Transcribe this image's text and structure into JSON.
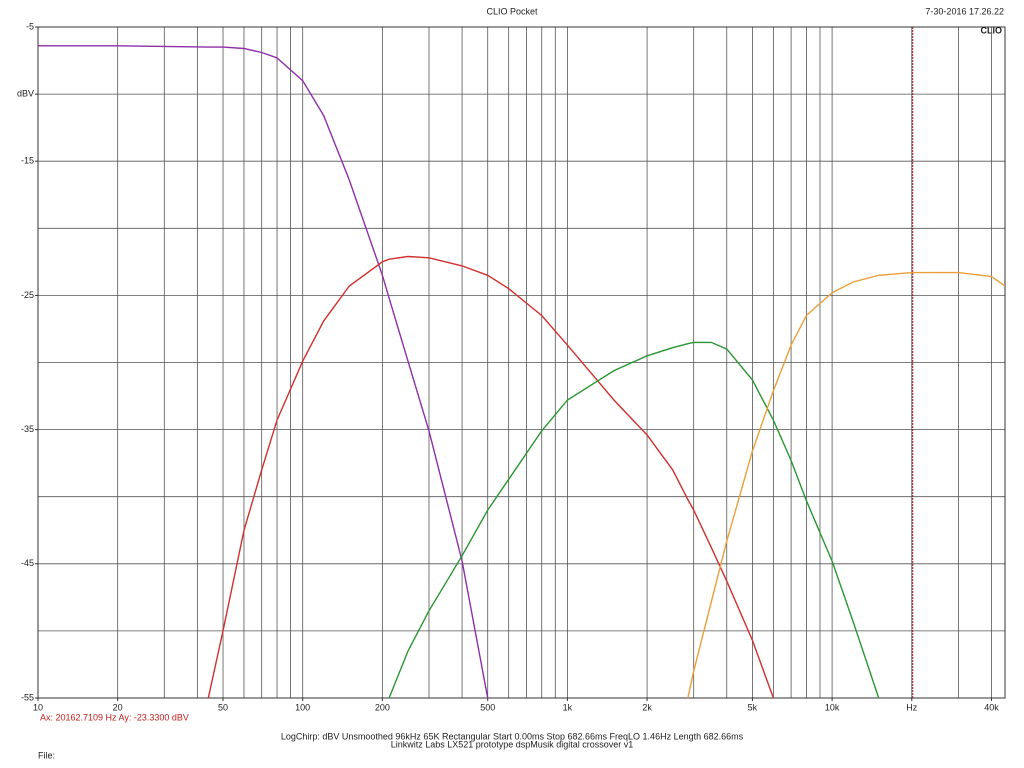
{
  "chart_data": {
    "type": "line",
    "title": "CLIO Pocket",
    "timestamp": "7-30-2016 17.26.22",
    "logo": "CLIO",
    "x_log": true,
    "x": [
      10,
      20,
      44,
      50,
      60,
      70,
      80,
      100,
      120,
      150,
      200,
      212,
      250,
      300,
      400,
      500,
      600,
      800,
      1000,
      1500,
      2000,
      2500,
      2850,
      3000,
      3500,
      4000,
      5000,
      6000,
      7000,
      8000,
      10000,
      12000,
      15000,
      20000,
      30000,
      40000,
      45000
    ],
    "series": [
      {
        "color": "#8e2fa8",
        "values": [
          -6.4,
          -6.4,
          -6.5,
          -6.5,
          -6.6,
          -6.9,
          -7.3,
          -9.0,
          -11.6,
          -16.4,
          -23.5,
          -25.2,
          -29.9,
          -35.1,
          -44.8,
          -55,
          null,
          null,
          null,
          null,
          null,
          null,
          null,
          null,
          null,
          null,
          null,
          null,
          null,
          null,
          null,
          null,
          null,
          null,
          null,
          null,
          null
        ]
      },
      {
        "color": "#d0302f",
        "values": [
          null,
          null,
          -55,
          -50,
          -42.5,
          -38,
          -34.3,
          -29.9,
          -26.9,
          -24.3,
          -22.5,
          -22.3,
          -22.1,
          -22.2,
          -22.8,
          -23.5,
          -24.5,
          -26.5,
          -28.7,
          -32.8,
          -35.4,
          -38,
          -40.2,
          -41,
          -43.8,
          -46.3,
          -50.7,
          -55,
          null,
          null,
          null,
          null,
          null,
          null,
          null,
          null,
          null
        ]
      },
      {
        "color": "#2a9632",
        "values": [
          null,
          null,
          null,
          null,
          null,
          null,
          null,
          null,
          null,
          null,
          null,
          -55,
          -51.5,
          -48.5,
          -44.4,
          -41,
          -38.7,
          -35.1,
          -32.8,
          -30.6,
          -29.5,
          -28.9,
          -28.6,
          -28.5,
          -28.5,
          -29,
          -31.3,
          -34.3,
          -37.3,
          -40.3,
          -44.8,
          -49.3,
          -55,
          null,
          null,
          null,
          null
        ]
      },
      {
        "color": "#e9a03a",
        "values": [
          null,
          null,
          null,
          null,
          null,
          null,
          null,
          null,
          null,
          null,
          null,
          null,
          null,
          null,
          null,
          null,
          null,
          null,
          null,
          null,
          null,
          null,
          -55,
          -53,
          -47.8,
          -43.3,
          -36.6,
          -32.1,
          -28.7,
          -26.5,
          -24.8,
          -24,
          -23.5,
          -23.3,
          -23.3,
          -23.6,
          -24.3
        ]
      }
    ],
    "xlim": [
      10,
      45000
    ],
    "ylim": [
      -55,
      -5
    ],
    "xticks": [
      10,
      20,
      50,
      100,
      200,
      500,
      {
        "value": 1000,
        "label": "1k"
      },
      {
        "value": 2000,
        "label": "2k"
      },
      {
        "value": 5000,
        "label": "5k"
      },
      {
        "value": 10000,
        "label": "10k"
      },
      {
        "value": 20000,
        "label": "Hz"
      },
      {
        "value": 40000,
        "label": "40k"
      }
    ],
    "yticks": [
      -5,
      {
        "value": -10,
        "label": "dBV"
      },
      -15,
      -25,
      -35,
      -45,
      -55
    ],
    "xgrid": [
      10,
      20,
      30,
      40,
      50,
      60,
      70,
      80,
      90,
      100,
      200,
      300,
      400,
      500,
      600,
      700,
      800,
      900,
      1000,
      2000,
      3000,
      4000,
      5000,
      6000,
      7000,
      8000,
      9000,
      10000,
      20000,
      30000,
      40000
    ],
    "ygrid": [
      -5,
      -10,
      -15,
      -20,
      -25,
      -30,
      -35,
      -40,
      -45,
      -50,
      -55
    ],
    "cursor": {
      "x": 20162.7109,
      "color": "#a01020",
      "label": "Ax: 20162.7109 Hz  Ay: -23.3300 dBV"
    },
    "footer": [
      "LogChirp:  dBV   Unsmoothed   96kHz   65K   Rectangular   Start 0.00ms   Stop 682.66ms   FreqLO 1.46Hz   Length 682.66ms",
      "Linkwitz Labs LX521 prototype dspMusik digital crossover v1"
    ],
    "file_label": "File:"
  }
}
